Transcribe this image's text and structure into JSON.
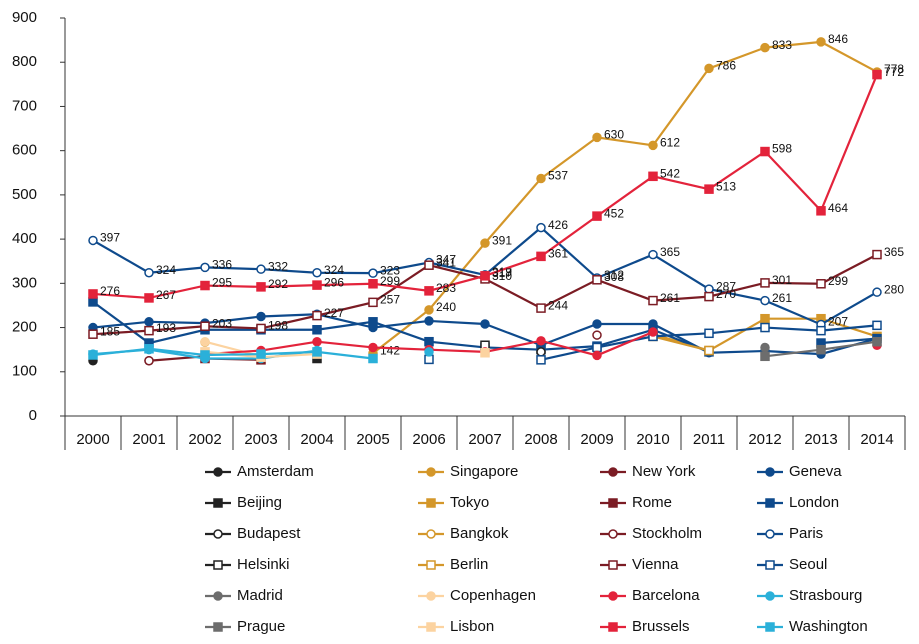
{
  "chart_data": {
    "type": "line",
    "categories": [
      "2000",
      "2001",
      "2002",
      "2003",
      "2004",
      "2005",
      "2006",
      "2007",
      "2008",
      "2009",
      "2010",
      "2011",
      "2012",
      "2013",
      "2014"
    ],
    "ylim": [
      0,
      900
    ],
    "yticks": [
      0,
      100,
      200,
      300,
      400,
      500,
      600,
      700,
      800,
      900
    ],
    "series": [
      {
        "name": "Amsterdam",
        "color": "#222222",
        "marker": "circle",
        "filled": true,
        "values": [
          125,
          null,
          null,
          null,
          null,
          null,
          null,
          null,
          null,
          null,
          null,
          null,
          null,
          null,
          null
        ]
      },
      {
        "name": "Singapore",
        "color": "#d4972a",
        "marker": "circle",
        "filled": true,
        "labels": true,
        "values": [
          null,
          null,
          null,
          null,
          null,
          142,
          240,
          391,
          537,
          630,
          612,
          786,
          833,
          846,
          778
        ]
      },
      {
        "name": "New York",
        "color": "#7b1c24",
        "marker": "circle",
        "filled": true,
        "values": [
          null,
          125,
          135,
          null,
          143,
          null,
          null,
          null,
          null,
          null,
          null,
          null,
          null,
          null,
          null
        ]
      },
      {
        "name": "Geneva",
        "color": "#0e4a8c",
        "marker": "circle",
        "filled": true,
        "values": [
          200,
          213,
          210,
          225,
          230,
          200,
          215,
          208,
          160,
          208,
          208,
          143,
          147,
          140,
          175
        ]
      },
      {
        "name": "Beijing",
        "color": "#222222",
        "marker": "square",
        "filled": true,
        "values": [
          null,
          null,
          null,
          null,
          130,
          null,
          null,
          null,
          null,
          null,
          null,
          null,
          null,
          null,
          null
        ]
      },
      {
        "name": "Tokyo",
        "color": "#d4972a",
        "marker": "square",
        "filled": true,
        "values": [
          null,
          null,
          null,
          null,
          null,
          null,
          null,
          null,
          150,
          null,
          185,
          148,
          220,
          220,
          180
        ]
      },
      {
        "name": "Rome",
        "color": "#7b1c24",
        "marker": "square",
        "filled": true,
        "values": [
          null,
          null,
          130,
          127,
          null,
          null,
          null,
          null,
          null,
          null,
          null,
          null,
          null,
          null,
          null
        ]
      },
      {
        "name": "London",
        "color": "#0e4a8c",
        "marker": "square",
        "filled": true,
        "values": [
          258,
          165,
          195,
          195,
          195,
          213,
          168,
          155,
          150,
          158,
          195,
          145,
          null,
          165,
          175
        ]
      },
      {
        "name": "Budapest",
        "color": "#222222",
        "marker": "circle",
        "filled": false,
        "values": [
          null,
          null,
          null,
          null,
          null,
          null,
          null,
          null,
          145,
          null,
          null,
          null,
          null,
          null,
          null
        ]
      },
      {
        "name": "Bangkok",
        "color": "#d4972a",
        "marker": "circle",
        "filled": false,
        "values": [
          null,
          null,
          167,
          null,
          null,
          null,
          null,
          null,
          null,
          null,
          null,
          null,
          null,
          null,
          null
        ]
      },
      {
        "name": "Stockholm",
        "color": "#7b1c24",
        "marker": "circle",
        "filled": false,
        "values": [
          null,
          125,
          null,
          null,
          null,
          null,
          null,
          null,
          null,
          183,
          null,
          null,
          null,
          null,
          null
        ]
      },
      {
        "name": "Paris",
        "color": "#0e4a8c",
        "marker": "circle",
        "filled": false,
        "labels": true,
        "values": [
          397,
          324,
          336,
          332,
          324,
          323,
          347,
          319,
          426,
          312,
          365,
          287,
          261,
          207,
          280
        ]
      },
      {
        "name": "Helsinki",
        "color": "#222222",
        "marker": "square",
        "filled": false,
        "values": [
          null,
          null,
          null,
          null,
          null,
          null,
          null,
          160,
          null,
          null,
          null,
          null,
          null,
          null,
          null
        ]
      },
      {
        "name": "Berlin",
        "color": "#d4972a",
        "marker": "square",
        "filled": false,
        "values": [
          null,
          null,
          null,
          null,
          null,
          null,
          null,
          null,
          null,
          null,
          180,
          148,
          null,
          null,
          null
        ]
      },
      {
        "name": "Vienna",
        "color": "#7b1c24",
        "marker": "square",
        "filled": false,
        "labels": true,
        "values": [
          185,
          193,
          203,
          198,
          227,
          257,
          341,
          310,
          244,
          308,
          261,
          270,
          301,
          299,
          365
        ]
      },
      {
        "name": "Seoul",
        "color": "#0e4a8c",
        "marker": "square",
        "filled": false,
        "values": [
          null,
          null,
          null,
          null,
          null,
          null,
          128,
          null,
          127,
          155,
          180,
          187,
          200,
          193,
          205
        ]
      },
      {
        "name": "Madrid",
        "color": "#6d6d6d",
        "marker": "circle",
        "filled": true,
        "values": [
          null,
          null,
          null,
          null,
          null,
          null,
          null,
          null,
          null,
          null,
          null,
          null,
          155,
          null,
          null
        ]
      },
      {
        "name": "Copenhagen",
        "color": "#fcd3a0",
        "marker": "circle",
        "filled": true,
        "values": [
          null,
          null,
          168,
          135,
          null,
          null,
          null,
          null,
          null,
          null,
          null,
          null,
          null,
          null,
          null
        ]
      },
      {
        "name": "Barcelona",
        "color": "#e3233b",
        "marker": "circle",
        "filled": true,
        "values": [
          null,
          null,
          140,
          148,
          168,
          155,
          150,
          145,
          170,
          137,
          190,
          null,
          null,
          null,
          160
        ]
      },
      {
        "name": "Strasbourg",
        "color": "#2bb0d9",
        "marker": "circle",
        "filled": true,
        "values": [
          140,
          150,
          130,
          130,
          148,
          null,
          145,
          null,
          null,
          null,
          null,
          null,
          null,
          null,
          null
        ]
      },
      {
        "name": "Prague",
        "color": "#6d6d6d",
        "marker": "square",
        "filled": true,
        "values": [
          null,
          null,
          null,
          null,
          null,
          null,
          null,
          null,
          null,
          null,
          null,
          null,
          135,
          150,
          168
        ]
      },
      {
        "name": "Lisbon",
        "color": "#fcd3a0",
        "marker": "square",
        "filled": true,
        "values": [
          null,
          null,
          145,
          133,
          140,
          null,
          null,
          143,
          null,
          null,
          null,
          null,
          null,
          null,
          null
        ]
      },
      {
        "name": "Brussels",
        "color": "#e3233b",
        "marker": "square",
        "filled": true,
        "labels": true,
        "values": [
          276,
          267,
          295,
          292,
          296,
          299,
          283,
          317,
          361,
          452,
          542,
          513,
          598,
          464,
          772
        ]
      },
      {
        "name": "Washington",
        "color": "#2bb0d9",
        "marker": "square",
        "filled": true,
        "values": [
          138,
          152,
          138,
          140,
          145,
          130,
          null,
          null,
          null,
          null,
          null,
          null,
          null,
          null,
          null
        ]
      }
    ]
  }
}
